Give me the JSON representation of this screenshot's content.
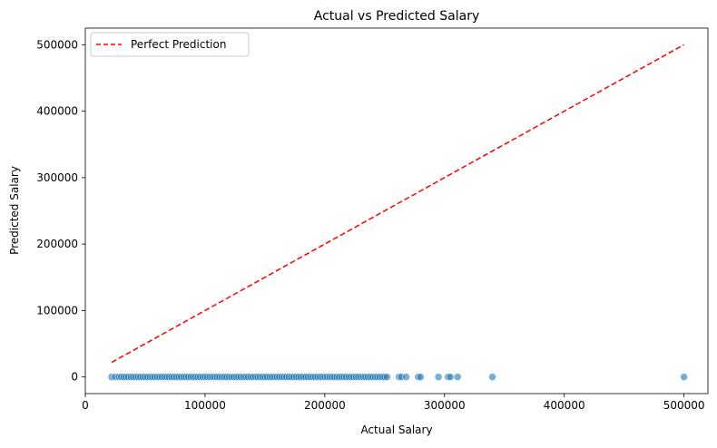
{
  "chart_data": {
    "type": "scatter",
    "title": "Actual vs Predicted Salary",
    "xlabel": "Actual Salary",
    "ylabel": "Predicted Salary",
    "xlim": [
      0,
      520000
    ],
    "ylim": [
      -25000,
      525000
    ],
    "xticks": [
      0,
      100000,
      200000,
      300000,
      400000,
      500000
    ],
    "yticks": [
      0,
      100000,
      200000,
      300000,
      400000,
      500000
    ],
    "grid": false,
    "legend_placement": "top-left",
    "series": [
      {
        "kind": "scatter",
        "color": "#1f77b4",
        "x": [
          22000,
          25000,
          28000,
          30000,
          32000,
          34000,
          36000,
          38000,
          40000,
          42000,
          44000,
          46000,
          48000,
          50000,
          52000,
          54000,
          56000,
          58000,
          60000,
          62000,
          64000,
          66000,
          68000,
          70000,
          72000,
          74000,
          76000,
          78000,
          80000,
          82000,
          84000,
          86000,
          88000,
          90000,
          92000,
          94000,
          96000,
          98000,
          100000,
          102000,
          104000,
          106000,
          108000,
          110000,
          112000,
          114000,
          116000,
          118000,
          120000,
          122000,
          124000,
          126000,
          128000,
          130000,
          132000,
          134000,
          136000,
          138000,
          140000,
          142000,
          144000,
          146000,
          148000,
          150000,
          152000,
          154000,
          156000,
          158000,
          160000,
          162000,
          164000,
          166000,
          168000,
          170000,
          172000,
          174000,
          176000,
          178000,
          180000,
          182000,
          184000,
          186000,
          188000,
          190000,
          192000,
          194000,
          196000,
          198000,
          200000,
          202000,
          204000,
          206000,
          208000,
          210000,
          212000,
          214000,
          216000,
          218000,
          220000,
          222000,
          224000,
          226000,
          228000,
          230000,
          232000,
          234000,
          236000,
          238000,
          240000,
          242000,
          244000,
          246000,
          248000,
          250000,
          252000,
          262000,
          264000,
          268000,
          278000,
          280000,
          295000,
          303000,
          305000,
          311000,
          340000,
          500000
        ],
        "y": [
          0,
          0,
          0,
          0,
          0,
          0,
          0,
          0,
          0,
          0,
          0,
          0,
          0,
          0,
          0,
          0,
          0,
          0,
          0,
          0,
          0,
          0,
          0,
          0,
          0,
          0,
          0,
          0,
          0,
          0,
          0,
          0,
          0,
          0,
          0,
          0,
          0,
          0,
          0,
          0,
          0,
          0,
          0,
          0,
          0,
          0,
          0,
          0,
          0,
          0,
          0,
          0,
          0,
          0,
          0,
          0,
          0,
          0,
          0,
          0,
          0,
          0,
          0,
          0,
          0,
          0,
          0,
          0,
          0,
          0,
          0,
          0,
          0,
          0,
          0,
          0,
          0,
          0,
          0,
          0,
          0,
          0,
          0,
          0,
          0,
          0,
          0,
          0,
          0,
          0,
          0,
          0,
          0,
          0,
          0,
          0,
          0,
          0,
          0,
          0,
          0,
          0,
          0,
          0,
          0,
          0,
          0,
          0,
          0,
          0,
          0,
          0,
          0,
          0,
          0,
          0,
          0,
          0,
          0,
          0,
          0,
          0,
          0,
          0,
          0,
          0
        ]
      },
      {
        "name": "Perfect Prediction",
        "kind": "line",
        "style": "dashed",
        "color": "#ff0000",
        "x": [
          22000,
          500000
        ],
        "y": [
          22000,
          500000
        ]
      }
    ]
  }
}
